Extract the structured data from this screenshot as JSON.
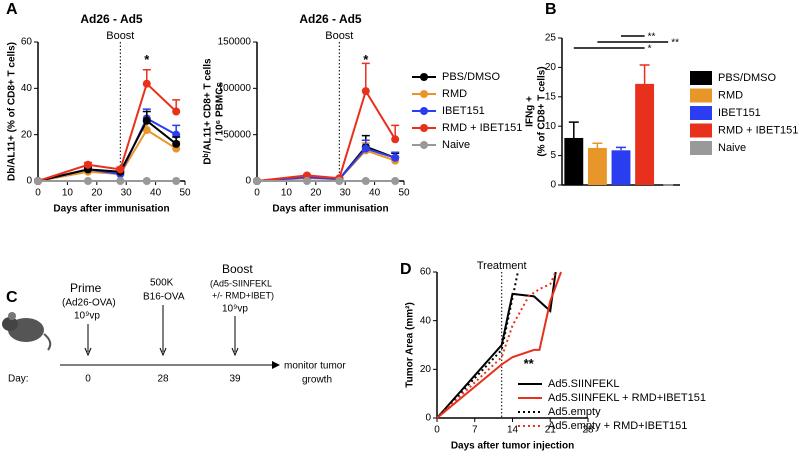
{
  "panel_labels": [
    "A",
    "B",
    "C",
    "D"
  ],
  "chart_data": [
    {
      "type": "line",
      "title": "Ad26 - Ad5",
      "xlabel": "Days after immunisation",
      "ylabel": "Db/AL11+ (% of CD8+ T cells)",
      "x": [
        0,
        17,
        28,
        37,
        47
      ],
      "xlim": [
        0,
        50
      ],
      "xticks": [
        0,
        10,
        20,
        30,
        40,
        50
      ],
      "ylim": [
        0,
        60
      ],
      "yticks": [
        0,
        20,
        40,
        60
      ],
      "markers": true,
      "vline": {
        "x": 28,
        "label": "Boost"
      },
      "annotations": [
        {
          "x": 37,
          "y": 52,
          "label": "*"
        }
      ],
      "series": [
        {
          "color": "#e8962a",
          "values": [
            0,
            4,
            3,
            22,
            14
          ],
          "errors": [
            0,
            1,
            1,
            4,
            3
          ]
        },
        {
          "color": "#2a3df0",
          "values": [
            0,
            5,
            3,
            27,
            20
          ],
          "errors": [
            0,
            1,
            1,
            4,
            4
          ]
        },
        {
          "color": "#000000",
          "values": [
            0,
            5,
            4,
            26,
            16
          ],
          "errors": [
            0,
            1,
            1,
            4,
            3
          ]
        },
        {
          "color": "#e8311c",
          "values": [
            0,
            7,
            5,
            42,
            30
          ],
          "errors": [
            0,
            1,
            1,
            6,
            5
          ]
        },
        {
          "color": "#999999",
          "values": [
            0,
            0,
            0,
            0,
            0
          ],
          "errors": [
            0,
            0,
            0,
            0,
            0
          ]
        }
      ]
    },
    {
      "type": "line",
      "title": "Ad26 - Ad5",
      "xlabel": "Days after immunisation",
      "ylabel": [
        "Dᵇ/AL11+ CD8+ T cells",
        "/ 10⁶ PBMCs"
      ],
      "x": [
        0,
        17,
        28,
        37,
        47
      ],
      "xlim": [
        0,
        50
      ],
      "xticks": [
        0,
        10,
        20,
        30,
        40,
        50
      ],
      "ylim": [
        0,
        150000
      ],
      "yticks": [
        0,
        50000,
        100000,
        150000
      ],
      "markers": true,
      "vline": {
        "x": 28,
        "label": "Boost"
      },
      "annotations": [
        {
          "x": 37,
          "y": 130000,
          "label": "*"
        }
      ],
      "series": [
        {
          "name": "PBS/DMSO",
          "color": "#000000",
          "values": [
            0,
            4000,
            2000,
            37000,
            25000
          ],
          "errors": [
            0,
            1000,
            500,
            12000,
            5000
          ]
        },
        {
          "name": "RMD",
          "color": "#e8962a",
          "values": [
            0,
            3000,
            2000,
            33000,
            22000
          ],
          "errors": [
            0,
            1000,
            500,
            8000,
            5000
          ]
        },
        {
          "name": "IBET151",
          "color": "#2a3df0",
          "values": [
            0,
            4000,
            2000,
            35000,
            25000
          ],
          "errors": [
            0,
            1000,
            500,
            9000,
            6000
          ]
        },
        {
          "name": "RMD + IBET151",
          "color": "#e8311c",
          "values": [
            0,
            6000,
            3000,
            97000,
            45000
          ],
          "errors": [
            0,
            1000,
            1000,
            30000,
            15000
          ]
        },
        {
          "name": "Naive",
          "color": "#999999",
          "values": [
            0,
            0,
            0,
            0,
            0
          ],
          "errors": [
            0,
            0,
            0,
            0,
            0
          ]
        }
      ]
    },
    {
      "type": "bar",
      "ylabel": [
        "IFNg +",
        "(% of CD8+ T cells)"
      ],
      "categories": [
        null,
        null,
        null,
        null,
        null
      ],
      "values": [
        8,
        6.3,
        5.9,
        17.2,
        0
      ],
      "errors": [
        2.7,
        0.8,
        0.5,
        3.2,
        0
      ],
      "colors": [
        "#000000",
        "#e8962a",
        "#2a3df0",
        "#e8311c",
        "#999999"
      ],
      "legend": [
        "PBS/DMSO",
        "RMD",
        "IBET151",
        "RMD + IBET151",
        "Naive"
      ],
      "ylim": [
        0,
        25
      ],
      "yticks": [
        0,
        5,
        10,
        15,
        20,
        25
      ],
      "significance": [
        "**",
        "**",
        "*"
      ]
    },
    {
      "type": "line",
      "xlabel": "Days after tumor injection",
      "ylabel": "Tumor Area (mm²)",
      "xlim": [
        0,
        28
      ],
      "xticks": [
        0,
        7,
        14,
        21,
        28
      ],
      "ylim": [
        0,
        60
      ],
      "yticks": [
        0,
        20,
        40,
        60
      ],
      "markers": false,
      "vline": {
        "x": 12,
        "label": "Treatment"
      },
      "annotations": [
        {
          "x": 17,
          "y": 22,
          "label": "**"
        }
      ],
      "series": [
        {
          "name": "Ad5.SIINFEKL",
          "color": "#000000",
          "dashed": false,
          "x": [
            0,
            12,
            14,
            18,
            21,
            22
          ],
          "values": [
            0,
            30,
            51,
            50,
            44,
            60
          ]
        },
        {
          "name": "Ad5.SIINFEKL + RMD+IBET151",
          "color": "#e8311c",
          "dashed": false,
          "x": [
            0,
            12,
            14,
            18,
            19,
            21,
            23
          ],
          "values": [
            0,
            22,
            25,
            28,
            28,
            48,
            60
          ]
        },
        {
          "name": "Ad5.empty",
          "color": "#000000",
          "dashed": true,
          "x": [
            0,
            12,
            15
          ],
          "values": [
            0,
            28,
            60
          ]
        },
        {
          "name": "Ad5.empty + RMD+IBET151",
          "color": "#e8311c",
          "dashed": true,
          "x": [
            0,
            12,
            14,
            17,
            19,
            21,
            22
          ],
          "values": [
            0,
            25,
            38,
            50,
            53,
            55,
            60
          ]
        }
      ]
    }
  ],
  "timeline": {
    "prime": [
      "Prime",
      "(Ad26-OVA)",
      "10⁹vp"
    ],
    "tumor": [
      "500K",
      "B16-OVA"
    ],
    "boost": [
      "Boost",
      "(Ad5-SIINFEKL",
      "+/- RMD+IBET)",
      "10⁹vp"
    ],
    "day_label": "Day:",
    "days": [
      "0",
      "28",
      "39"
    ],
    "end": [
      "monitor tumor",
      "growth"
    ]
  }
}
